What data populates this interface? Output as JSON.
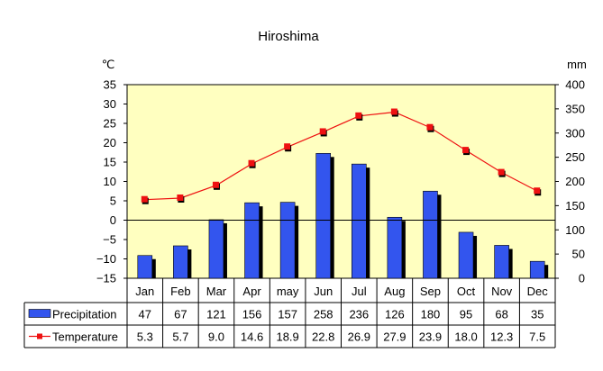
{
  "chart_data": {
    "type": "bar",
    "title": "Hiroshima",
    "categories": [
      "Jan",
      "Feb",
      "Mar",
      "Apr",
      "may",
      "Jun",
      "Jul",
      "Aug",
      "Sep",
      "Oct",
      "Nov",
      "Dec"
    ],
    "series": [
      {
        "name": "Precipitation",
        "type": "bar",
        "axis": "right",
        "values": [
          47,
          67,
          121,
          156,
          157,
          258,
          236,
          126,
          180,
          95,
          68,
          35
        ],
        "labels": [
          "47",
          "67",
          "121",
          "156",
          "157",
          "258",
          "236",
          "126",
          "180",
          "95",
          "68",
          "35"
        ],
        "color": "#3355ee",
        "shadow_color": "#000000"
      },
      {
        "name": "Temperature",
        "type": "line",
        "axis": "left",
        "values": [
          5.3,
          5.7,
          9.0,
          14.6,
          18.9,
          22.8,
          26.9,
          27.9,
          23.9,
          18.0,
          12.3,
          7.5
        ],
        "labels": [
          "5.3",
          "5.7",
          "9.0",
          "14.6",
          "18.9",
          "22.8",
          "26.9",
          "27.9",
          "23.9",
          "18.0",
          "12.3",
          "7.5"
        ],
        "color": "#ee1111",
        "shadow_color": "#000000"
      }
    ],
    "left_axis": {
      "unit": "℃",
      "range": [
        -15,
        35
      ],
      "ticks": [
        35,
        30,
        25,
        20,
        15,
        10,
        5,
        0,
        -5,
        -10,
        -15
      ],
      "tick_labels": [
        "35",
        "30",
        "25",
        "20",
        "15",
        "10",
        "5",
        "0",
        "−5",
        "−10",
        "−15"
      ]
    },
    "right_axis": {
      "unit": "mm",
      "range": [
        0,
        400
      ],
      "ticks": [
        400,
        350,
        300,
        250,
        200,
        150,
        100,
        50,
        0
      ],
      "tick_labels": [
        "400",
        "350",
        "300",
        "250",
        "200",
        "150",
        "100",
        "50",
        "0"
      ]
    },
    "plot_background": "#ffffc0",
    "grid": false,
    "legend": "data-table-left"
  }
}
